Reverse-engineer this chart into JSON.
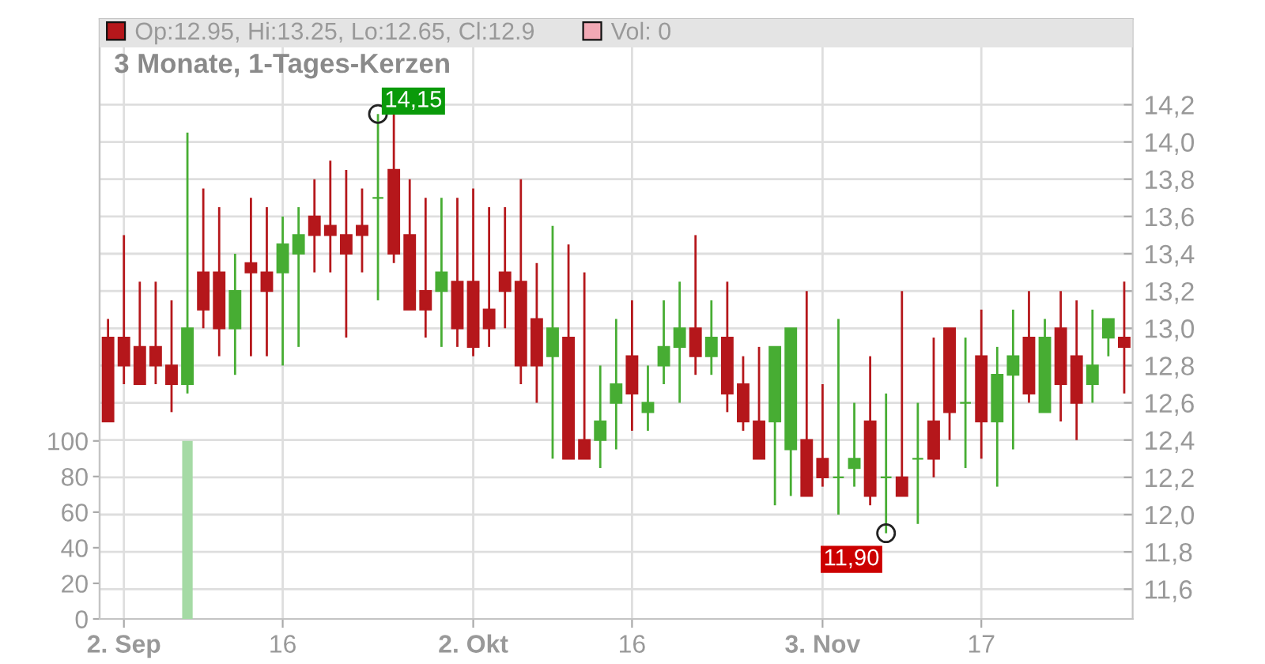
{
  "chart_data": {
    "type": "candlestick",
    "title": "3 Monate, 1-Tages-Kerzen",
    "categories": [
      null,
      "2. Sep",
      null,
      null,
      null,
      null,
      null,
      null,
      null,
      null,
      null,
      "16",
      null,
      null,
      null,
      null,
      null,
      null,
      null,
      null,
      null,
      null,
      null,
      "2. Okt",
      null,
      null,
      null,
      null,
      null,
      null,
      null,
      null,
      null,
      "16",
      null,
      null,
      null,
      null,
      null,
      null,
      null,
      null,
      null,
      null,
      null,
      "3. Nov",
      null,
      null,
      null,
      null,
      null,
      null,
      null,
      null,
      null,
      "17",
      null,
      null,
      null,
      null,
      null,
      null,
      null,
      null,
      null
    ],
    "series": [
      {
        "name": "Op:12.95, Hi:13.25, Lo:12.65, Cl:12.9",
        "color": "#b5171b",
        "ohlc": [
          [
            12.95,
            13.05,
            12.5,
            12.5
          ],
          [
            12.95,
            13.5,
            12.7,
            12.8
          ],
          [
            12.9,
            13.25,
            12.7,
            12.7
          ],
          [
            12.9,
            13.25,
            12.7,
            12.8
          ],
          [
            12.8,
            13.15,
            12.55,
            12.7
          ],
          [
            12.7,
            14.05,
            12.65,
            13.0
          ],
          [
            13.3,
            13.75,
            13.0,
            13.1
          ],
          [
            13.3,
            13.65,
            12.85,
            13.0
          ],
          [
            13.0,
            13.4,
            12.75,
            13.2
          ],
          [
            13.35,
            13.7,
            12.85,
            13.3
          ],
          [
            13.3,
            13.65,
            12.85,
            13.2
          ],
          [
            13.3,
            13.6,
            12.8,
            13.45
          ],
          [
            13.4,
            13.65,
            12.9,
            13.5
          ],
          [
            13.6,
            13.8,
            13.3,
            13.5
          ],
          [
            13.55,
            13.9,
            13.3,
            13.5
          ],
          [
            13.5,
            13.85,
            12.95,
            13.4
          ],
          [
            13.55,
            13.75,
            13.3,
            13.5
          ],
          [
            13.7,
            14.15,
            13.15,
            13.7
          ],
          [
            13.85,
            14.15,
            13.35,
            13.4
          ],
          [
            13.5,
            13.8,
            13.1,
            13.1
          ],
          [
            13.2,
            13.7,
            12.95,
            13.1
          ],
          [
            13.2,
            13.7,
            12.9,
            13.3
          ],
          [
            13.25,
            13.7,
            12.9,
            13.0
          ],
          [
            13.25,
            13.75,
            12.85,
            12.9
          ],
          [
            13.1,
            13.65,
            12.9,
            13.0
          ],
          [
            13.3,
            13.65,
            13.0,
            13.2
          ],
          [
            13.25,
            13.8,
            12.7,
            12.8
          ],
          [
            13.05,
            13.35,
            12.6,
            12.8
          ],
          [
            12.85,
            13.55,
            12.3,
            13.0
          ],
          [
            12.95,
            13.45,
            12.3,
            12.3
          ],
          [
            12.4,
            13.3,
            12.3,
            12.3
          ],
          [
            12.4,
            12.8,
            12.25,
            12.5
          ],
          [
            12.6,
            13.05,
            12.35,
            12.7
          ],
          [
            12.85,
            13.15,
            12.45,
            12.65
          ],
          [
            12.55,
            12.8,
            12.45,
            12.6
          ],
          [
            12.8,
            13.15,
            12.7,
            12.9
          ],
          [
            12.9,
            13.25,
            12.6,
            13.0
          ],
          [
            13.0,
            13.5,
            12.75,
            12.85
          ],
          [
            12.85,
            13.15,
            12.75,
            12.95
          ],
          [
            12.95,
            13.25,
            12.55,
            12.65
          ],
          [
            12.7,
            12.85,
            12.45,
            12.5
          ],
          [
            12.5,
            12.9,
            12.3,
            12.3
          ],
          [
            12.5,
            12.9,
            12.05,
            12.9
          ],
          [
            12.35,
            13.0,
            12.1,
            13.0
          ],
          [
            12.4,
            13.2,
            12.1,
            12.1
          ],
          [
            12.3,
            12.7,
            12.15,
            12.2
          ],
          [
            12.2,
            13.05,
            12.0,
            12.2
          ],
          [
            12.25,
            12.6,
            12.15,
            12.3
          ],
          [
            12.5,
            12.85,
            12.05,
            12.1
          ],
          [
            12.2,
            12.65,
            11.9,
            12.2
          ],
          [
            12.2,
            13.2,
            12.1,
            12.1
          ],
          [
            12.3,
            12.6,
            11.95,
            12.3
          ],
          [
            12.5,
            12.95,
            12.2,
            12.3
          ],
          [
            13.0,
            13.0,
            12.4,
            12.55
          ],
          [
            12.6,
            12.95,
            12.25,
            12.6
          ],
          [
            12.85,
            13.1,
            12.3,
            12.5
          ],
          [
            12.5,
            12.9,
            12.15,
            12.75
          ],
          [
            12.75,
            13.1,
            12.35,
            12.85
          ],
          [
            12.95,
            13.2,
            12.6,
            12.65
          ],
          [
            12.55,
            13.05,
            12.55,
            12.95
          ],
          [
            13.0,
            13.2,
            12.5,
            12.7
          ],
          [
            12.85,
            13.15,
            12.4,
            12.6
          ],
          [
            12.7,
            13.1,
            12.6,
            12.8
          ],
          [
            12.95,
            13.05,
            12.85,
            13.05
          ],
          [
            12.95,
            13.25,
            12.65,
            12.9
          ]
        ],
        "colors": [
          "#b5171b",
          "#b5171b",
          "#b5171b",
          "#b5171b",
          "#b5171b",
          "#47ad33",
          "#b5171b",
          "#b5171b",
          "#47ad33",
          "#b5171b",
          "#b5171b",
          "#47ad33",
          "#47ad33",
          "#b5171b",
          "#b5171b",
          "#b5171b",
          "#b5171b",
          "#47ad33",
          "#b5171b",
          "#b5171b",
          "#b5171b",
          "#47ad33",
          "#b5171b",
          "#b5171b",
          "#b5171b",
          "#b5171b",
          "#b5171b",
          "#b5171b",
          "#47ad33",
          "#b5171b",
          "#b5171b",
          "#47ad33",
          "#47ad33",
          "#b5171b",
          "#47ad33",
          "#47ad33",
          "#47ad33",
          "#b5171b",
          "#47ad33",
          "#b5171b",
          "#b5171b",
          "#b5171b",
          "#47ad33",
          "#47ad33",
          "#b5171b",
          "#b5171b",
          "#47ad33",
          "#47ad33",
          "#b5171b",
          "#47ad33",
          "#b5171b",
          "#47ad33",
          "#b5171b",
          "#b5171b",
          "#47ad33",
          "#b5171b",
          "#47ad33",
          "#47ad33",
          "#b5171b",
          "#47ad33",
          "#b5171b",
          "#b5171b",
          "#47ad33",
          "#47ad33",
          "#b5171b"
        ],
        "value_labels": [
          null,
          null,
          null,
          null,
          null,
          null,
          null,
          null,
          null,
          null,
          null,
          null,
          null,
          null,
          null,
          null,
          null,
          "14,15",
          null,
          null,
          null,
          null,
          null,
          null,
          null,
          null,
          null,
          null,
          null,
          null,
          null,
          null,
          null,
          null,
          null,
          null,
          null,
          null,
          null,
          null,
          null,
          null,
          null,
          null,
          null,
          null,
          null,
          null,
          null,
          "11,90",
          null,
          null,
          null,
          null,
          null,
          null,
          null,
          null,
          null,
          null,
          null,
          null,
          null,
          null,
          null
        ]
      },
      {
        "type": "bar",
        "axis": "y2",
        "color": "#f2a9b5",
        "values": [
          0,
          0,
          0,
          0,
          0,
          100,
          0,
          0,
          0,
          0,
          0,
          0,
          0,
          0,
          0,
          0,
          0,
          0,
          0,
          0,
          0,
          0,
          0,
          0,
          0,
          0,
          0,
          0,
          0,
          0,
          0,
          0,
          0,
          0,
          0,
          0,
          0,
          0,
          0,
          0,
          0,
          0,
          0,
          0,
          0,
          0,
          0,
          0,
          0,
          0,
          0,
          0,
          0,
          0,
          0,
          0,
          0,
          0,
          0,
          0,
          0,
          0,
          0,
          0,
          0
        ],
        "colors": [
          "#f2a9b5",
          "#f2a9b5",
          "#f2a9b5",
          "#f2a9b5",
          "#f2a9b5",
          "#a5daa5",
          "#f2a9b5",
          "#f2a9b5",
          "#a5daa5",
          "#f2a9b5",
          "#f2a9b5",
          "#a5daa5",
          "#a5daa5",
          "#f2a9b5",
          "#f2a9b5",
          "#f2a9b5",
          "#f2a9b5",
          "#a5daa5",
          "#f2a9b5",
          "#f2a9b5",
          "#f2a9b5",
          "#a5daa5",
          "#f2a9b5",
          "#f2a9b5",
          "#f2a9b5",
          "#f2a9b5",
          "#f2a9b5",
          "#f2a9b5",
          "#a5daa5",
          "#f2a9b5",
          "#f2a9b5",
          "#a5daa5",
          "#a5daa5",
          "#f2a9b5",
          "#a5daa5",
          "#a5daa5",
          "#a5daa5",
          "#f2a9b5",
          "#a5daa5",
          "#f2a9b5",
          "#f2a9b5",
          "#f2a9b5",
          "#a5daa5",
          "#a5daa5",
          "#f2a9b5",
          "#f2a9b5",
          "#a5daa5",
          "#a5daa5",
          "#f2a9b5",
          "#a5daa5",
          "#f2a9b5",
          "#a5daa5",
          "#f2a9b5",
          "#f2a9b5",
          "#a5daa5",
          "#f2a9b5",
          "#a5daa5",
          "#a5daa5",
          "#f2a9b5",
          "#a5daa5",
          "#f2a9b5",
          "#f2a9b5",
          "#a5daa5",
          "#a5daa5",
          "#f2a9b5"
        ]
      }
    ],
    "ylim": [
      11.44,
      14.66
    ],
    "yticks": [
      {
        "value": 11.6,
        "label": "11,6"
      },
      {
        "value": 11.8,
        "label": "11,8"
      },
      {
        "value": 12.0,
        "label": "12,0"
      },
      {
        "value": 12.2,
        "label": "12,2"
      },
      {
        "value": 12.4,
        "label": "12,4"
      },
      {
        "value": 12.6,
        "label": "12,6"
      },
      {
        "value": 12.8,
        "label": "12,8"
      },
      {
        "value": 13.0,
        "label": "13,0"
      },
      {
        "value": 13.2,
        "label": "13,2"
      },
      {
        "value": 13.4,
        "label": "13,4"
      },
      {
        "value": 13.6,
        "label": "13,6"
      },
      {
        "value": 13.8,
        "label": "13,8"
      },
      {
        "value": 14.0,
        "label": "14,0"
      },
      {
        "value": 14.2,
        "label": "14,2"
      }
    ],
    "y2lim": [
      0,
      337
    ],
    "y2ticks": [
      0,
      20,
      40,
      60,
      80,
      100
    ],
    "annotations": [
      "Vol: 0"
    ],
    "grid": true,
    "legend": "top"
  }
}
